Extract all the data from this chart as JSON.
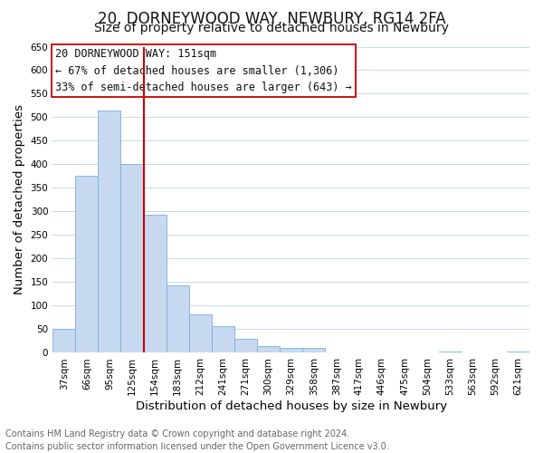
{
  "title": "20, DORNEYWOOD WAY, NEWBURY, RG14 2FA",
  "subtitle": "Size of property relative to detached houses in Newbury",
  "xlabel": "Distribution of detached houses by size in Newbury",
  "ylabel": "Number of detached properties",
  "bar_labels": [
    "37sqm",
    "66sqm",
    "95sqm",
    "125sqm",
    "154sqm",
    "183sqm",
    "212sqm",
    "241sqm",
    "271sqm",
    "300sqm",
    "329sqm",
    "358sqm",
    "387sqm",
    "417sqm",
    "446sqm",
    "475sqm",
    "504sqm",
    "533sqm",
    "563sqm",
    "592sqm",
    "621sqm"
  ],
  "bar_values": [
    51,
    376,
    514,
    400,
    293,
    144,
    82,
    56,
    30,
    14,
    10,
    10,
    0,
    0,
    0,
    0,
    0,
    2,
    0,
    0,
    2
  ],
  "bar_color": "#c6d9f1",
  "bar_edge_color": "#7bafd4",
  "vline_color": "#cc0000",
  "vline_x_index": 4,
  "ylim": [
    0,
    650
  ],
  "yticks": [
    0,
    50,
    100,
    150,
    200,
    250,
    300,
    350,
    400,
    450,
    500,
    550,
    600,
    650
  ],
  "annotation_title": "20 DORNEYWOOD WAY: 151sqm",
  "annotation_line1": "← 67% of detached houses are smaller (1,306)",
  "annotation_line2": "33% of semi-detached houses are larger (643) →",
  "annotation_box_color": "#ffffff",
  "annotation_border_color": "#cc0000",
  "footer_line1": "Contains HM Land Registry data © Crown copyright and database right 2024.",
  "footer_line2": "Contains public sector information licensed under the Open Government Licence v3.0.",
  "background_color": "#ffffff",
  "grid_color": "#c8d8ec",
  "title_fontsize": 12,
  "subtitle_fontsize": 10,
  "axis_label_fontsize": 9.5,
  "tick_fontsize": 7.5,
  "annotation_fontsize": 8.5,
  "footer_fontsize": 7
}
